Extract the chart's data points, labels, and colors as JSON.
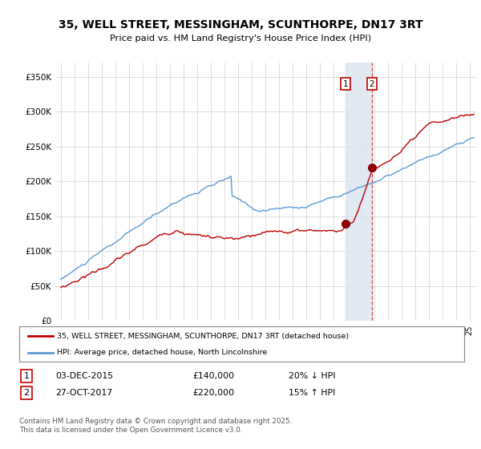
{
  "title_line1": "35, WELL STREET, MESSINGHAM, SCUNTHORPE, DN17 3RT",
  "title_line2": "Price paid vs. HM Land Registry's House Price Index (HPI)",
  "ylabel_ticks": [
    "£0",
    "£50K",
    "£100K",
    "£150K",
    "£200K",
    "£250K",
    "£300K",
    "£350K"
  ],
  "ytick_values": [
    0,
    50000,
    100000,
    150000,
    200000,
    250000,
    300000,
    350000
  ],
  "ylim": [
    0,
    370000
  ],
  "xlim_start": 1994.6,
  "xlim_end": 2025.5,
  "purchase1_date": 2015.92,
  "purchase1_price": 140000,
  "purchase1_label": "1",
  "purchase2_date": 2017.83,
  "purchase2_price": 220000,
  "purchase2_label": "2",
  "hpi_line_color": "#5b9bd5",
  "price_line_color": "#c00000",
  "purchase_marker_color": "#8b0000",
  "shade_color": "#dce6f1",
  "legend_entry1": "35, WELL STREET, MESSINGHAM, SCUNTHORPE, DN17 3RT (detached house)",
  "legend_entry2": "HPI: Average price, detached house, North Lincolnshire",
  "table_row1": [
    "1",
    "03-DEC-2015",
    "£140,000",
    "20% ↓ HPI"
  ],
  "table_row2": [
    "2",
    "27-OCT-2017",
    "£220,000",
    "15% ↑ HPI"
  ],
  "footnote": "Contains HM Land Registry data © Crown copyright and database right 2025.\nThis data is licensed under the Open Government Licence v3.0.",
  "bg_color": "#ffffff",
  "grid_color": "#d0d0d0",
  "tick_label_fontsize": 7.5,
  "title_fontsize": 10
}
